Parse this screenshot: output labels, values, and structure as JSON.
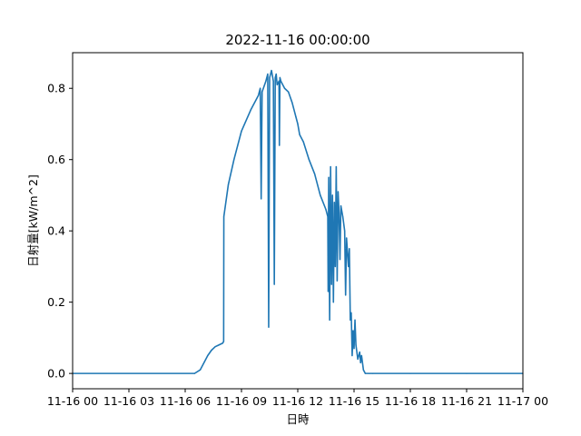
{
  "chart_data": {
    "type": "line",
    "title": "2022-11-16 00:00:00",
    "xlabel": "日時",
    "ylabel": "日射量[kW/m^2]",
    "xlim": [
      0,
      24
    ],
    "ylim": [
      -0.043,
      0.9
    ],
    "grid": false,
    "line_color": "#1f77b4",
    "x_ticks": [
      {
        "value": 0,
        "label": "11-16 00"
      },
      {
        "value": 3,
        "label": "11-16 03"
      },
      {
        "value": 6,
        "label": "11-16 06"
      },
      {
        "value": 9,
        "label": "11-16 09"
      },
      {
        "value": 12,
        "label": "11-16 12"
      },
      {
        "value": 15,
        "label": "11-16 15"
      },
      {
        "value": 18,
        "label": "11-16 18"
      },
      {
        "value": 21,
        "label": "11-16 21"
      },
      {
        "value": 24,
        "label": "11-17 00"
      }
    ],
    "y_ticks": [
      {
        "value": 0.0,
        "label": "0.0"
      },
      {
        "value": 0.2,
        "label": "0.2"
      },
      {
        "value": 0.4,
        "label": "0.4"
      },
      {
        "value": 0.6,
        "label": "0.6"
      },
      {
        "value": 0.8,
        "label": "0.8"
      }
    ],
    "series": [
      {
        "x_unit": "hours since 2022-11-16 00:00",
        "x": [
          0,
          6.5,
          6.8,
          7.0,
          7.2,
          7.4,
          7.6,
          7.8,
          8.0,
          8.05,
          8.06,
          8.3,
          8.6,
          9.0,
          9.5,
          9.9,
          10.0,
          10.05,
          10.1,
          10.3,
          10.4,
          10.45,
          10.5,
          10.55,
          10.6,
          10.7,
          10.75,
          10.8,
          10.85,
          10.9,
          11.0,
          11.02,
          11.05,
          11.1,
          11.3,
          11.5,
          11.7,
          11.9,
          12.0,
          12.1,
          12.3,
          12.6,
          12.9,
          13.2,
          13.5,
          13.6,
          13.62,
          13.65,
          13.7,
          13.75,
          13.8,
          13.85,
          13.9,
          13.95,
          14.0,
          14.05,
          14.1,
          14.15,
          14.2,
          14.25,
          14.3,
          14.4,
          14.5,
          14.55,
          14.6,
          14.7,
          14.75,
          14.8,
          14.85,
          14.9,
          14.95,
          15.0,
          15.05,
          15.1,
          15.2,
          15.3,
          15.35,
          15.4,
          15.5,
          15.6,
          15.8,
          16.0,
          18.0,
          21.0,
          24.0
        ],
        "y": [
          0.0,
          0.0,
          0.01,
          0.03,
          0.05,
          0.065,
          0.075,
          0.08,
          0.085,
          0.09,
          0.44,
          0.53,
          0.6,
          0.68,
          0.74,
          0.78,
          0.8,
          0.49,
          0.79,
          0.82,
          0.84,
          0.13,
          0.83,
          0.84,
          0.85,
          0.82,
          0.25,
          0.83,
          0.84,
          0.81,
          0.82,
          0.64,
          0.83,
          0.82,
          0.8,
          0.79,
          0.76,
          0.72,
          0.7,
          0.67,
          0.65,
          0.6,
          0.56,
          0.5,
          0.46,
          0.44,
          0.23,
          0.55,
          0.15,
          0.58,
          0.25,
          0.5,
          0.2,
          0.48,
          0.3,
          0.58,
          0.26,
          0.51,
          0.45,
          0.32,
          0.47,
          0.44,
          0.4,
          0.22,
          0.38,
          0.3,
          0.35,
          0.15,
          0.17,
          0.05,
          0.12,
          0.07,
          0.15,
          0.08,
          0.04,
          0.06,
          0.03,
          0.05,
          0.01,
          0.0,
          0.0,
          0.0,
          0.0,
          0.0,
          0.0
        ]
      }
    ]
  }
}
